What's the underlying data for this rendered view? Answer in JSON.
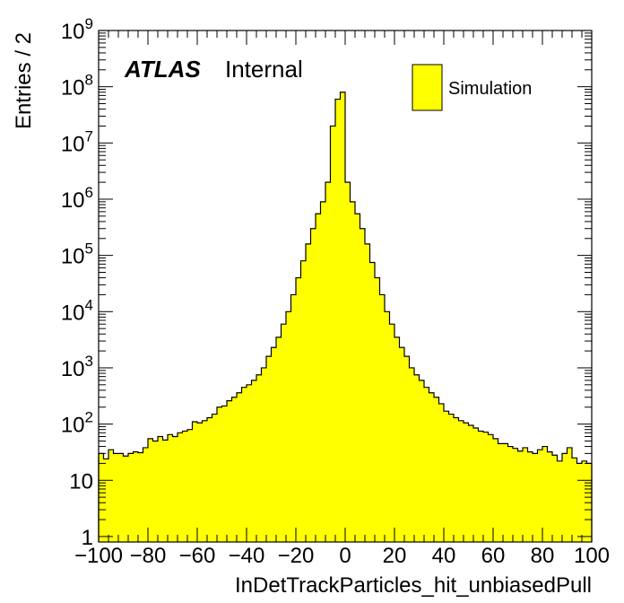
{
  "chart_data": {
    "type": "bar",
    "title": "",
    "xlabel": "InDetTrackParticles_hit_unbiasedPull",
    "ylabel": "Entries / 2",
    "xlim": [
      -100,
      100
    ],
    "ylim": [
      0.8,
      1000000000
    ],
    "yscale": "log",
    "bin_width": 2,
    "x_ticks": [
      -100,
      -80,
      -60,
      -40,
      -20,
      0,
      20,
      40,
      60,
      80,
      100
    ],
    "x_tick_labels": [
      "−100",
      "−80",
      "−60",
      "−40",
      "−20",
      "0",
      "20",
      "40",
      "60",
      "80",
      "100"
    ],
    "y_tick_labels": [
      {
        "base": "1",
        "exp": ""
      },
      {
        "base": "10",
        "exp": ""
      },
      {
        "base": "10",
        "exp": "2"
      },
      {
        "base": "10",
        "exp": "3"
      },
      {
        "base": "10",
        "exp": "4"
      },
      {
        "base": "10",
        "exp": "5"
      },
      {
        "base": "10",
        "exp": "6"
      },
      {
        "base": "10",
        "exp": "7"
      },
      {
        "base": "10",
        "exp": "8"
      },
      {
        "base": "10",
        "exp": "9"
      }
    ],
    "y_tick_values": [
      1,
      10,
      100,
      1000,
      10000,
      100000,
      1000000,
      10000000,
      100000000,
      1000000000
    ],
    "fill_color": "#ffff00",
    "line_color": "#000000",
    "legend": {
      "label": "Simulation",
      "position": "top-right"
    },
    "annotation": {
      "bold": "ATLAS",
      "normal": "Internal"
    },
    "bin_lows": [
      -100,
      -98,
      -96,
      -94,
      -92,
      -90,
      -88,
      -86,
      -84,
      -82,
      -80,
      -78,
      -76,
      -74,
      -72,
      -70,
      -68,
      -66,
      -64,
      -62,
      -60,
      -58,
      -56,
      -54,
      -52,
      -50,
      -48,
      -46,
      -44,
      -42,
      -40,
      -38,
      -36,
      -34,
      -32,
      -30,
      -28,
      -26,
      -24,
      -22,
      -20,
      -18,
      -16,
      -14,
      -12,
      -10,
      -8,
      -6,
      -4,
      -2,
      0,
      2,
      4,
      6,
      8,
      10,
      12,
      14,
      16,
      18,
      20,
      22,
      24,
      26,
      28,
      30,
      32,
      34,
      36,
      38,
      40,
      42,
      44,
      46,
      48,
      50,
      52,
      54,
      56,
      58,
      60,
      62,
      64,
      66,
      68,
      70,
      72,
      74,
      76,
      78,
      80,
      82,
      84,
      86,
      88,
      90,
      92,
      94,
      96,
      98
    ],
    "values": [
      30,
      24,
      35,
      30,
      30,
      27,
      30,
      32,
      31,
      38,
      55,
      50,
      60,
      52,
      65,
      60,
      70,
      75,
      80,
      110,
      105,
      115,
      130,
      150,
      200,
      210,
      260,
      300,
      360,
      450,
      500,
      600,
      750,
      1000,
      1600,
      2300,
      3500,
      6000,
      10000,
      20000,
      40000,
      80000,
      160000,
      300000,
      550000,
      900000,
      2000000,
      20000000,
      60000000,
      80000000,
      2000000,
      900000,
      550000,
      300000,
      160000,
      75000,
      40000,
      20000,
      10000,
      6000,
      3500,
      2300,
      1600,
      1000,
      750,
      600,
      450,
      360,
      300,
      230,
      170,
      150,
      130,
      115,
      105,
      95,
      85,
      75,
      72,
      65,
      55,
      45,
      45,
      40,
      37,
      33,
      38,
      32,
      30,
      35,
      40,
      32,
      28,
      22,
      30,
      38,
      25,
      20,
      22,
      20
    ]
  }
}
